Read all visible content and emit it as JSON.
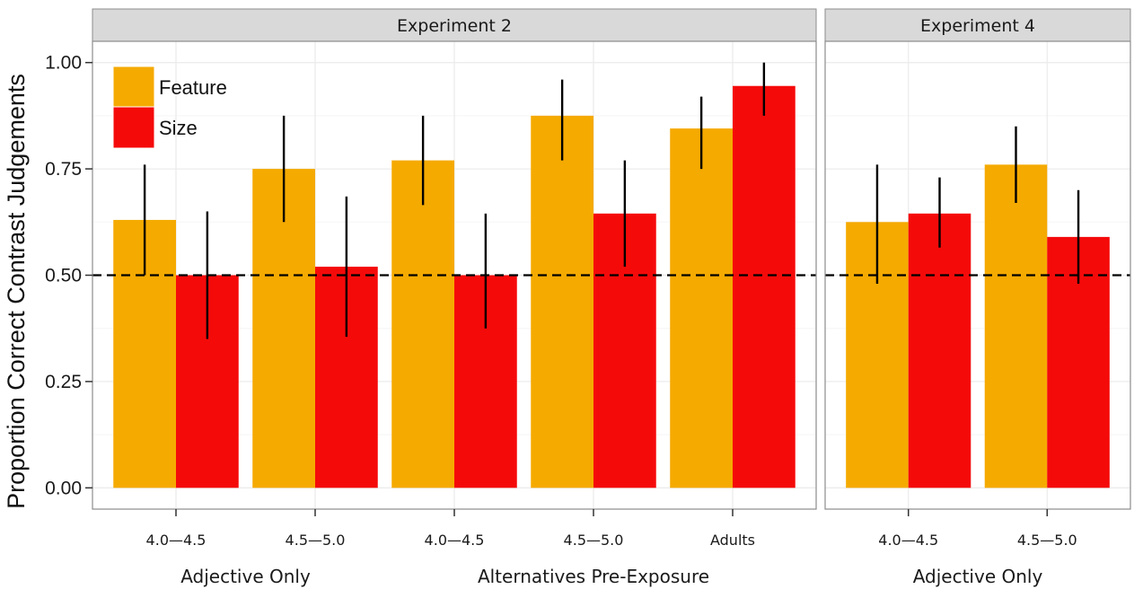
{
  "chart_data": {
    "type": "bar",
    "ylabel": "Proportion Correct Contrast Judgements",
    "ylim": [
      -0.05,
      1.05
    ],
    "yticks": [
      0.0,
      0.25,
      0.5,
      0.75,
      1.0
    ],
    "ytick_labels": [
      "0.00",
      "0.25",
      "0.50",
      "0.75",
      "1.00"
    ],
    "reference_line": 0.5,
    "grid": true,
    "colors": {
      "Feature": "#f5aa00",
      "Size": "#f50a0a"
    },
    "legend": {
      "position": "top-left",
      "entries": [
        "Feature",
        "Size"
      ]
    },
    "panels": [
      {
        "title": "Experiment 2",
        "categories": [
          "4.0—4.5",
          "4.5—5.0",
          "4.0—4.5",
          "4.5—5.0",
          "Adults"
        ],
        "group_labels": [
          "Adjective Only",
          "Alternatives Pre-Exposure"
        ],
        "series": [
          {
            "name": "Feature",
            "values": [
              0.63,
              0.75,
              0.77,
              0.875,
              0.845
            ],
            "err_low": [
              0.5,
              0.625,
              0.665,
              0.77,
              0.75
            ],
            "err_high": [
              0.76,
              0.875,
              0.875,
              0.96,
              0.92
            ]
          },
          {
            "name": "Size",
            "values": [
              0.5,
              0.52,
              0.5,
              0.645,
              0.945
            ],
            "err_low": [
              0.35,
              0.355,
              0.375,
              0.52,
              0.875
            ],
            "err_high": [
              0.65,
              0.685,
              0.645,
              0.77,
              1.0
            ]
          }
        ]
      },
      {
        "title": "Experiment 4",
        "categories": [
          "4.0—4.5",
          "4.5—5.0"
        ],
        "group_labels": [
          "Adjective Only"
        ],
        "series": [
          {
            "name": "Feature",
            "values": [
              0.625,
              0.76
            ],
            "err_low": [
              0.48,
              0.67
            ],
            "err_high": [
              0.76,
              0.85
            ]
          },
          {
            "name": "Size",
            "values": [
              0.645,
              0.59
            ],
            "err_low": [
              0.565,
              0.48
            ],
            "err_high": [
              0.73,
              0.7
            ]
          }
        ]
      }
    ]
  }
}
